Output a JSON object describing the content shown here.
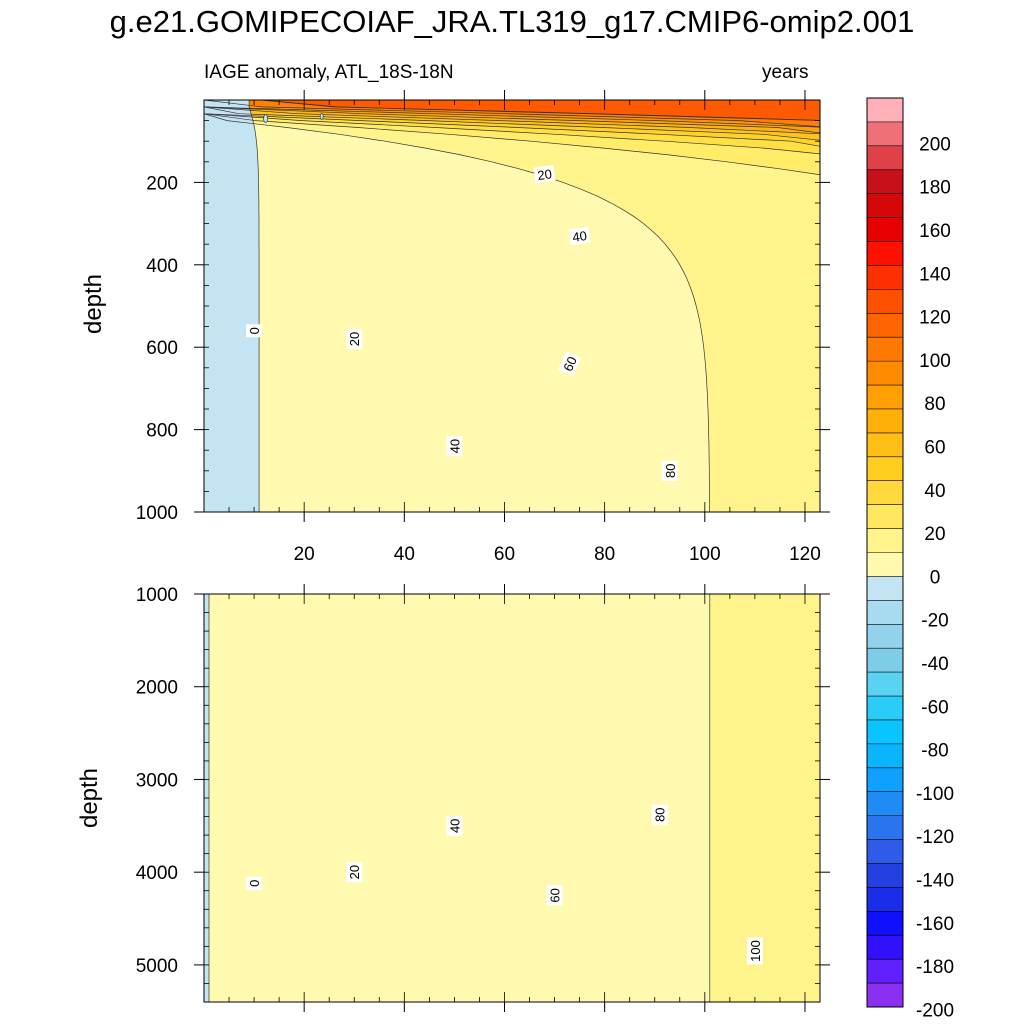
{
  "title": "g.e21.GOMIPECOIAF_JRA.TL319_g17.CMIP6-omip2.001",
  "subtitle_left": "IAGE anomaly, ATL_18S-18N",
  "subtitle_right": "years",
  "colors": {
    "positive": [
      "#fffaaf",
      "#fff48b",
      "#ffec68",
      "#ffe044",
      "#ffd22a",
      "#ffc31b",
      "#ffb310",
      "#ffa208",
      "#ff9102",
      "#ff7f00",
      "#ff6c00",
      "#ff5a00"
    ],
    "negative": "#c4e4f4",
    "colorbar": [
      "#8b2ff0",
      "#6020ff",
      "#3010ff",
      "#1010ff",
      "#1a2de8",
      "#2340e0",
      "#2e5ce8",
      "#2a74f0",
      "#1f8cf5",
      "#10a0ff",
      "#0ab4ff",
      "#0ac4ff",
      "#2acdf7",
      "#5ad2f2",
      "#7ecde8",
      "#92d2ea",
      "#a7dbf0",
      "#c4e4f4",
      "#fffaaf",
      "#fff48b",
      "#ffe85f",
      "#ffd83c",
      "#ffcc20",
      "#ffbe14",
      "#ffb008",
      "#ff9f00",
      "#ff8c00",
      "#ff7800",
      "#ff6400",
      "#ff5000",
      "#ff3000",
      "#ff1000",
      "#e60000",
      "#d40808",
      "#c8101a",
      "#e04048",
      "#f07078",
      "#ffb0b8"
    ]
  },
  "chart_data": [
    {
      "type": "contour",
      "panel": "upper",
      "ylabel": "depth",
      "xlim": [
        0,
        123
      ],
      "ylim": [
        1000,
        0
      ],
      "yticks": [
        200,
        400,
        600,
        800,
        1000
      ],
      "xticks": [
        20,
        40,
        60,
        80,
        100,
        120
      ],
      "contour_interval": 10,
      "contour_labels": [
        {
          "value": "0",
          "x": 10,
          "y": 560
        },
        {
          "value": "20",
          "x": 30,
          "y": 580
        },
        {
          "value": "40",
          "x": 50,
          "y": 840
        },
        {
          "value": "80",
          "x": 93,
          "y": 900
        },
        {
          "value": "20",
          "x": 68,
          "y": 180
        },
        {
          "value": "40",
          "x": 75,
          "y": 330
        },
        {
          "value": "60",
          "x": 73,
          "y": 640
        }
      ]
    },
    {
      "type": "contour",
      "panel": "lower",
      "ylabel": "depth",
      "xlim": [
        0,
        123
      ],
      "ylim": [
        5400,
        1000
      ],
      "yticks": [
        1000,
        2000,
        3000,
        4000,
        5000
      ],
      "contour_interval": 10,
      "contour_labels": [
        {
          "value": "0",
          "x": 10,
          "y": 4120
        },
        {
          "value": "20",
          "x": 30,
          "y": 4000
        },
        {
          "value": "40",
          "x": 50,
          "y": 3500
        },
        {
          "value": "60",
          "x": 70,
          "y": 4250
        },
        {
          "value": "80",
          "x": 91,
          "y": 3380
        },
        {
          "value": "100",
          "x": 110,
          "y": 4850
        }
      ]
    }
  ],
  "colorbar": {
    "labels": [
      "200",
      "180",
      "160",
      "140",
      "120",
      "100",
      "80",
      "60",
      "40",
      "20",
      "0",
      "-20",
      "-40",
      "-60",
      "-80",
      "-100",
      "-120",
      "-140",
      "-160",
      "-180",
      "-200"
    ]
  }
}
